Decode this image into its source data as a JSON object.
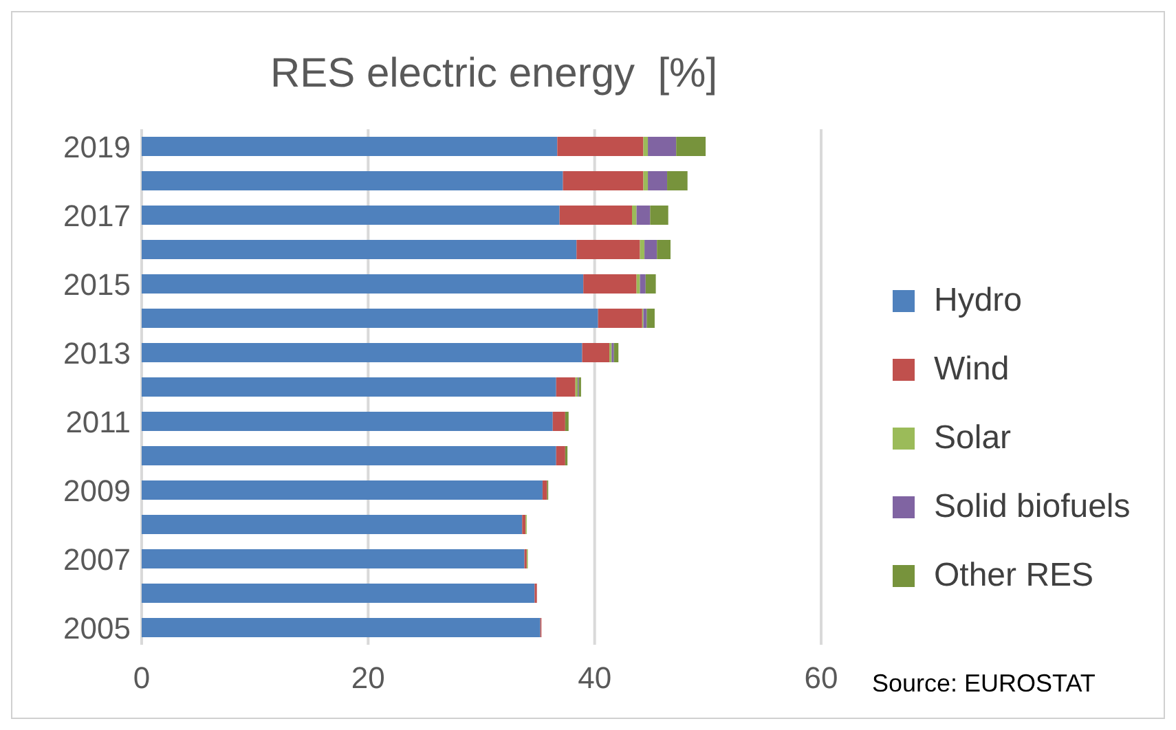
{
  "chart_data": {
    "type": "bar",
    "orientation": "horizontal",
    "stacked": true,
    "title": "RES electric energy  [%]",
    "categories": [
      "2019",
      null,
      "2017",
      null,
      "2015",
      null,
      "2013",
      null,
      "2011",
      null,
      "2009",
      null,
      "2007",
      null,
      "2005"
    ],
    "series": [
      {
        "name": "Hydro",
        "color": "#4f81bd",
        "values": [
          36.7,
          37.2,
          36.9,
          38.4,
          39.0,
          40.3,
          38.9,
          36.6,
          36.3,
          36.6,
          35.4,
          33.6,
          33.8,
          34.7,
          35.2
        ]
      },
      {
        "name": "Wind",
        "color": "#c0504d",
        "values": [
          7.6,
          7.1,
          6.4,
          5.6,
          4.7,
          3.9,
          2.4,
          1.7,
          1.1,
          0.8,
          0.4,
          0.3,
          0.2,
          0.2,
          0.1
        ]
      },
      {
        "name": "Solar",
        "color": "#9bbb59",
        "values": [
          0.4,
          0.4,
          0.4,
          0.4,
          0.3,
          0.1,
          0.2,
          0.2,
          0,
          0,
          0,
          0.1,
          0.1,
          0,
          0
        ]
      },
      {
        "name": "Solid biofuels",
        "color": "#8064a2",
        "values": [
          2.5,
          1.7,
          1.2,
          1.1,
          0.5,
          0.3,
          0.2,
          0.1,
          0,
          0,
          0,
          0,
          0,
          0,
          0
        ]
      },
      {
        "name": "Other RES",
        "color": "#77933c",
        "values": [
          2.6,
          1.8,
          1.6,
          1.2,
          0.9,
          0.7,
          0.4,
          0.2,
          0.3,
          0.2,
          0.1,
          0,
          0,
          0,
          0
        ]
      }
    ],
    "xlim": [
      0,
      60
    ],
    "xticks": [
      0,
      20,
      40,
      60
    ],
    "grid": "x",
    "legend": "right",
    "annotations": [
      "Source: EUROSTAT"
    ]
  }
}
